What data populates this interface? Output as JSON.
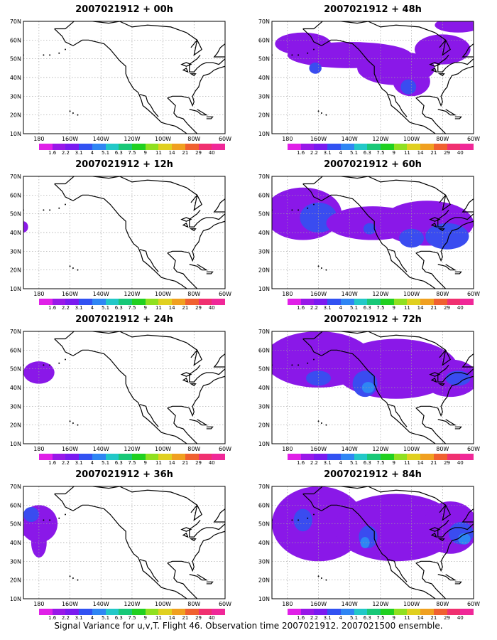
{
  "lat_labels": [
    "70N",
    "60N",
    "50N",
    "40N",
    "30N",
    "20N",
    "10N"
  ],
  "lon_labels": [
    "180",
    "160W",
    "140W",
    "120W",
    "100W",
    "80W",
    "60W"
  ],
  "colorbar": {
    "labels": [
      "1.6",
      "2.2",
      "3.1",
      "4",
      "5.1",
      "6.3",
      "7.5",
      "9",
      "11",
      "14",
      "21",
      "29",
      "40"
    ],
    "colors": [
      "#e020e8",
      "#9818e8",
      "#7a1af0",
      "#3252f2",
      "#2f86f4",
      "#22c8c8",
      "#18c878",
      "#20d020",
      "#90e020",
      "#e0d020",
      "#f0a020",
      "#f06030",
      "#f03070",
      "#f02898"
    ]
  },
  "colors": {
    "coast": "#000000",
    "grid": "#a0a0a0",
    "obs_points": "#f0208a"
  },
  "panels": [
    {
      "title": "2007021912 + 00h"
    },
    {
      "title": "2007021912 + 48h"
    },
    {
      "title": "2007021912 + 12h"
    },
    {
      "title": "2007021912 + 60h"
    },
    {
      "title": "2007021912 + 24h"
    },
    {
      "title": "2007021912 + 72h"
    },
    {
      "title": "2007021912 + 36h"
    },
    {
      "title": "2007021912 + 84h"
    }
  ],
  "footer": "Signal Variance for u,v,T. Flight 46. Observation time 2007021912. 2007021500 ensemble."
}
